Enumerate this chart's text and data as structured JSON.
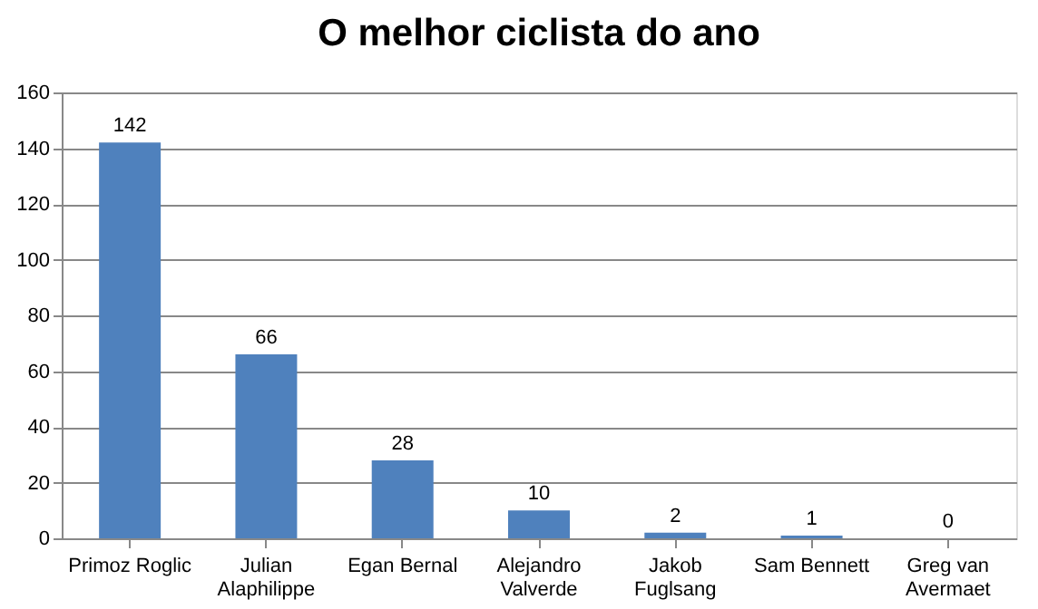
{
  "chart_data": {
    "type": "bar",
    "title": "O melhor ciclista do ano",
    "categories": [
      "Primoz Roglic",
      "Julian Alaphilippe",
      "Egan Bernal",
      "Alejandro Valverde",
      "Jakob Fuglsang",
      "Sam Bennett",
      "Greg van Avermaet"
    ],
    "values": [
      142,
      66,
      28,
      10,
      2,
      1,
      0
    ],
    "color": "#4f81bd",
    "ylim": [
      0,
      160
    ],
    "yticks": [
      0,
      20,
      40,
      60,
      80,
      100,
      120,
      140,
      160
    ],
    "grid": "y",
    "data_labels": true
  }
}
